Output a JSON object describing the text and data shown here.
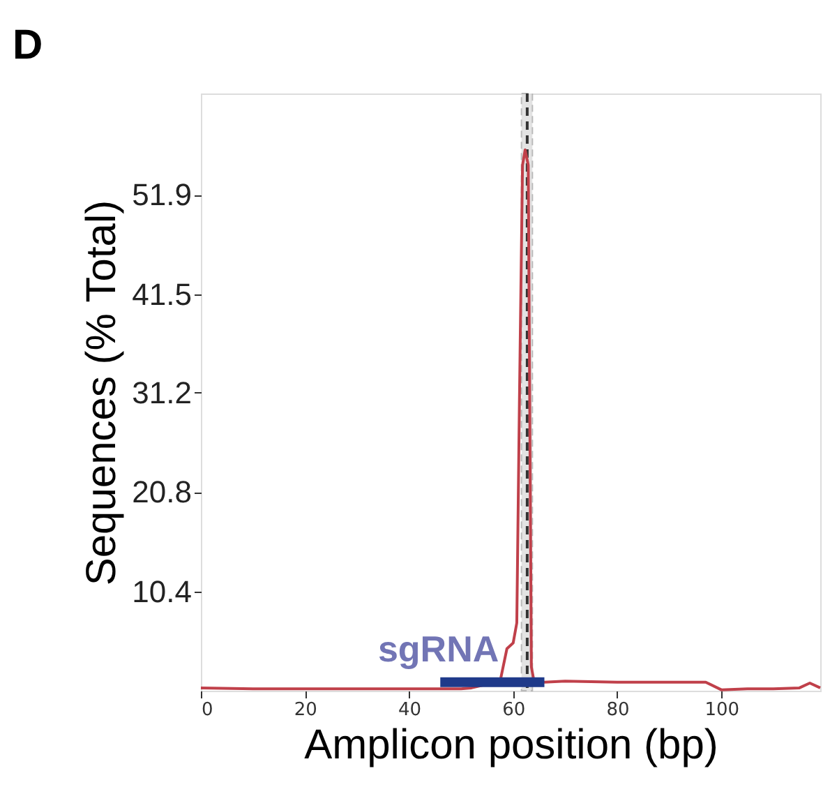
{
  "chart_data": {
    "type": "line",
    "title": "D",
    "xlabel": "Amplicon position (bp)",
    "ylabel": "Sequences (% Total)",
    "xlim": [
      0,
      119
    ],
    "xticks": [
      0,
      20,
      40,
      60,
      80,
      100
    ],
    "ylim": [
      0,
      62.5
    ],
    "yticks": [
      10.4,
      20.8,
      31.2,
      41.5,
      51.9
    ],
    "grid": false,
    "legend": false,
    "line_style": "solid",
    "marker": "none",
    "series": [
      {
        "color": "#c0404a",
        "x": [
          0,
          10,
          20,
          30,
          40,
          50,
          52,
          57.5,
          58.8,
          60,
          60.7,
          61.2,
          61.8,
          62.3,
          62.9,
          63.5,
          64,
          66,
          70,
          80,
          90,
          97,
          100,
          105,
          110,
          115,
          117,
          119
        ],
        "values": [
          0.3,
          0.2,
          0.2,
          0.2,
          0.2,
          0.2,
          0.3,
          1.0,
          4.4,
          5.0,
          7.1,
          30,
          55,
          56.6,
          55,
          2.5,
          1.0,
          0.9,
          1.0,
          0.9,
          0.9,
          0.9,
          0.1,
          0.2,
          0.2,
          0.3,
          0.8,
          0.3
        ]
      },
      {
        "name": "sgRNA",
        "type": "line",
        "color": "#1f3a8a",
        "x": [
          46,
          66
        ],
        "values": [
          0.9,
          0.9
        ]
      }
    ],
    "bands": [
      {
        "axis": "x",
        "from": 61.6,
        "to": 63.7,
        "color": "#dddddd"
      }
    ],
    "ref_lines": [
      {
        "axis": "x",
        "value": 62.7,
        "color": "#333333",
        "line_style": "dashed"
      }
    ]
  }
}
